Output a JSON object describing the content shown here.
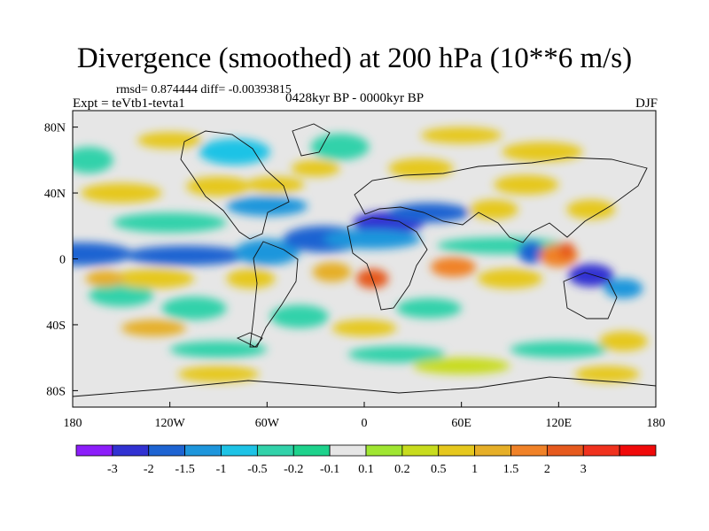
{
  "chart_data": {
    "type": "heatmap",
    "title": "Divergence (smoothed) at 200 hPa (10**6 m/s)",
    "stats_text": "rmsd= 0.874444 diff= -0.00393815",
    "experiment_label": "Expt = teVtb1-tevta1",
    "period_label": "0428kyr BP - 0000kyr BP",
    "season_label": "DJF",
    "xlim": [
      -180,
      180
    ],
    "ylim": [
      -90,
      90
    ],
    "x_ticks": [
      {
        "value": -180,
        "label": "180"
      },
      {
        "value": -120,
        "label": "120W"
      },
      {
        "value": -60,
        "label": "60W"
      },
      {
        "value": 0,
        "label": "0"
      },
      {
        "value": 60,
        "label": "60E"
      },
      {
        "value": 120,
        "label": "120E"
      },
      {
        "value": 180,
        "label": "180"
      }
    ],
    "y_ticks": [
      {
        "value": 80,
        "label": "80N"
      },
      {
        "value": 40,
        "label": "40N"
      },
      {
        "value": 0,
        "label": "0"
      },
      {
        "value": -40,
        "label": "40S"
      },
      {
        "value": -80,
        "label": "80S"
      }
    ],
    "colorbar": {
      "colors": [
        "#8c1efa",
        "#3232d2",
        "#1e64d2",
        "#1e96dc",
        "#1ec3e6",
        "#32d2aa",
        "#1ed28c",
        "#e6e6e6",
        "#a0e632",
        "#c8dc1e",
        "#e6c81e",
        "#e6af28",
        "#f08228",
        "#e65a1e",
        "#f0321e",
        "#f00a0a"
      ],
      "labels": [
        "-3",
        "-2",
        "-1.5",
        "-1",
        "-0.5",
        "-0.2",
        "-0.1",
        "0.1",
        "0.2",
        "0.5",
        "1",
        "1.5",
        "2",
        "3"
      ]
    },
    "features": [
      {
        "lon": -175,
        "lat": 3,
        "value": -1.8,
        "rx": 32,
        "ry": 7
      },
      {
        "lon": -110,
        "lat": 2,
        "value": -1.6,
        "rx": 38,
        "ry": 6
      },
      {
        "lon": -60,
        "lat": 4,
        "value": -1.2,
        "rx": 20,
        "ry": 8
      },
      {
        "lon": -25,
        "lat": 12,
        "value": -2.0,
        "rx": 25,
        "ry": 8
      },
      {
        "lon": 15,
        "lat": 22,
        "value": -2.8,
        "rx": 22,
        "ry": 7
      },
      {
        "lon": 40,
        "lat": 28,
        "value": -1.8,
        "rx": 25,
        "ry": 6
      },
      {
        "lon": 5,
        "lat": 12,
        "value": -1.2,
        "rx": 30,
        "ry": 6
      },
      {
        "lon": -60,
        "lat": 32,
        "value": -1.2,
        "rx": 25,
        "ry": 6
      },
      {
        "lon": -120,
        "lat": 22,
        "value": -0.5,
        "rx": 35,
        "ry": 6
      },
      {
        "lon": 85,
        "lat": 8,
        "value": -0.5,
        "rx": 40,
        "ry": 5
      },
      {
        "lon": 103,
        "lat": 4,
        "value": -2.0,
        "rx": 8,
        "ry": 7
      },
      {
        "lon": 140,
        "lat": -10,
        "value": -2.5,
        "rx": 14,
        "ry": 7
      },
      {
        "lon": 160,
        "lat": -18,
        "value": -1.2,
        "rx": 12,
        "ry": 6
      },
      {
        "lon": -150,
        "lat": -22,
        "value": -0.5,
        "rx": 20,
        "ry": 7
      },
      {
        "lon": -105,
        "lat": -30,
        "value": -0.5,
        "rx": 20,
        "ry": 7
      },
      {
        "lon": -40,
        "lat": -35,
        "value": -0.5,
        "rx": 18,
        "ry": 7
      },
      {
        "lon": 40,
        "lat": -30,
        "value": -0.5,
        "rx": 20,
        "ry": 6
      },
      {
        "lon": -90,
        "lat": -55,
        "value": -0.5,
        "rx": 30,
        "ry": 5
      },
      {
        "lon": 20,
        "lat": -58,
        "value": -0.5,
        "rx": 30,
        "ry": 5
      },
      {
        "lon": 120,
        "lat": -55,
        "value": -0.5,
        "rx": 30,
        "ry": 5
      },
      {
        "lon": -80,
        "lat": 65,
        "value": -0.8,
        "rx": 22,
        "ry": 8
      },
      {
        "lon": -15,
        "lat": 68,
        "value": -0.5,
        "rx": 18,
        "ry": 8
      },
      {
        "lon": -170,
        "lat": 60,
        "value": -0.3,
        "rx": 15,
        "ry": 8
      },
      {
        "lon": -150,
        "lat": 40,
        "value": 0.8,
        "rx": 25,
        "ry": 6
      },
      {
        "lon": -90,
        "lat": 44,
        "value": 0.5,
        "rx": 20,
        "ry": 6
      },
      {
        "lon": -55,
        "lat": 45,
        "value": 0.8,
        "rx": 18,
        "ry": 5
      },
      {
        "lon": -130,
        "lat": -12,
        "value": 0.8,
        "rx": 25,
        "ry": 6
      },
      {
        "lon": -160,
        "lat": -12,
        "value": 1.3,
        "rx": 12,
        "ry": 5
      },
      {
        "lon": -70,
        "lat": -12,
        "value": 0.5,
        "rx": 15,
        "ry": 6
      },
      {
        "lon": -20,
        "lat": -8,
        "value": 1.3,
        "rx": 12,
        "ry": 6
      },
      {
        "lon": 5,
        "lat": -12,
        "value": 2.3,
        "rx": 10,
        "ry": 6
      },
      {
        "lon": 55,
        "lat": -5,
        "value": 1.6,
        "rx": 14,
        "ry": 6
      },
      {
        "lon": 90,
        "lat": -12,
        "value": 0.8,
        "rx": 20,
        "ry": 6
      },
      {
        "lon": 120,
        "lat": 2,
        "value": 1.6,
        "rx": 12,
        "ry": 7
      },
      {
        "lon": 125,
        "lat": 5,
        "value": 2.5,
        "rx": 5,
        "ry": 5
      },
      {
        "lon": 80,
        "lat": 30,
        "value": 0.8,
        "rx": 15,
        "ry": 6
      },
      {
        "lon": 140,
        "lat": 30,
        "value": 0.8,
        "rx": 15,
        "ry": 6
      },
      {
        "lon": 100,
        "lat": 45,
        "value": 0.5,
        "rx": 20,
        "ry": 6
      },
      {
        "lon": -130,
        "lat": -42,
        "value": 1.2,
        "rx": 20,
        "ry": 5
      },
      {
        "lon": 0,
        "lat": -42,
        "value": 0.8,
        "rx": 20,
        "ry": 5
      },
      {
        "lon": 160,
        "lat": -50,
        "value": 0.8,
        "rx": 15,
        "ry": 6
      },
      {
        "lon": -30,
        "lat": 55,
        "value": 0.5,
        "rx": 15,
        "ry": 5
      },
      {
        "lon": 35,
        "lat": 55,
        "value": 0.8,
        "rx": 20,
        "ry": 6
      },
      {
        "lon": 110,
        "lat": 65,
        "value": 0.5,
        "rx": 25,
        "ry": 6
      },
      {
        "lon": -120,
        "lat": 72,
        "value": 0.5,
        "rx": 20,
        "ry": 5
      },
      {
        "lon": 60,
        "lat": 75,
        "value": 0.5,
        "rx": 25,
        "ry": 5
      },
      {
        "lon": -90,
        "lat": -70,
        "value": 0.5,
        "rx": 25,
        "ry": 5
      },
      {
        "lon": 60,
        "lat": -65,
        "value": 0.2,
        "rx": 30,
        "ry": 5
      },
      {
        "lon": 150,
        "lat": -70,
        "value": 0.5,
        "rx": 20,
        "ry": 5
      }
    ]
  }
}
